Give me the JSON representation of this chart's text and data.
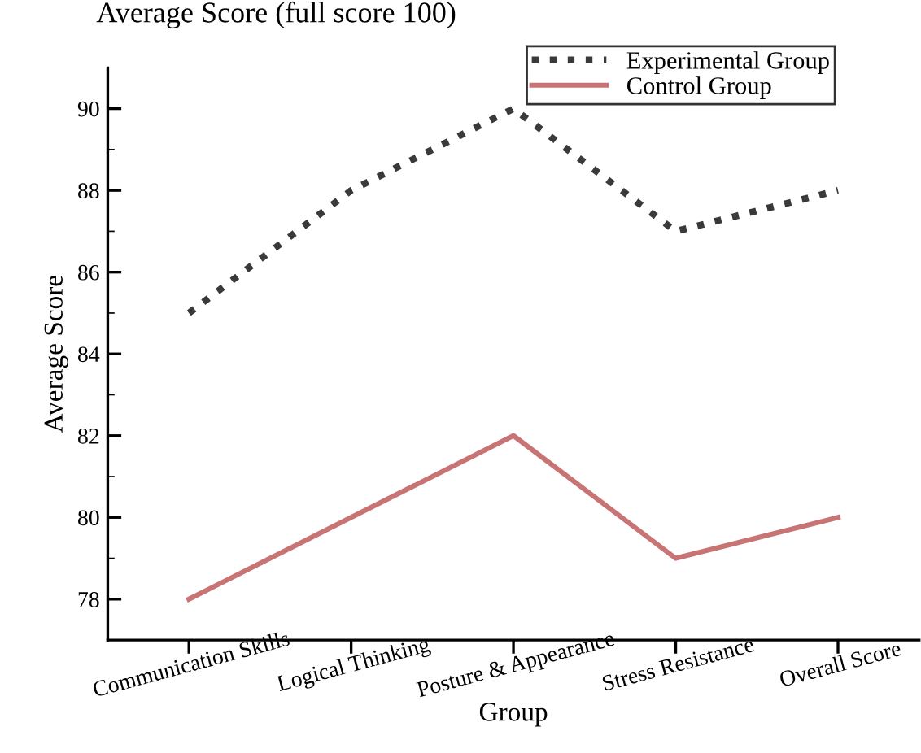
{
  "chart_data": {
    "type": "line",
    "title": "Average Score (full score 100)",
    "xlabel": "Group",
    "ylabel": "Average Score",
    "categories": [
      "Communication Skills",
      "Logical Thinking",
      "Posture & Appearance",
      "Stress Resistance",
      "Overall Score"
    ],
    "series": [
      {
        "name": "Experimental Group",
        "color": "#3a3a3a",
        "values": [
          85,
          88,
          90,
          87,
          88
        ],
        "line_style": "dotted"
      },
      {
        "name": "Control Group",
        "color": "#c87474",
        "values": [
          78,
          80,
          82,
          79,
          80
        ],
        "line_style": "solid"
      }
    ],
    "ylim": [
      77,
      91
    ],
    "yticks": [
      78,
      80,
      82,
      84,
      86,
      88,
      90
    ],
    "grid": false,
    "legend": "top right",
    "marker": "none"
  }
}
